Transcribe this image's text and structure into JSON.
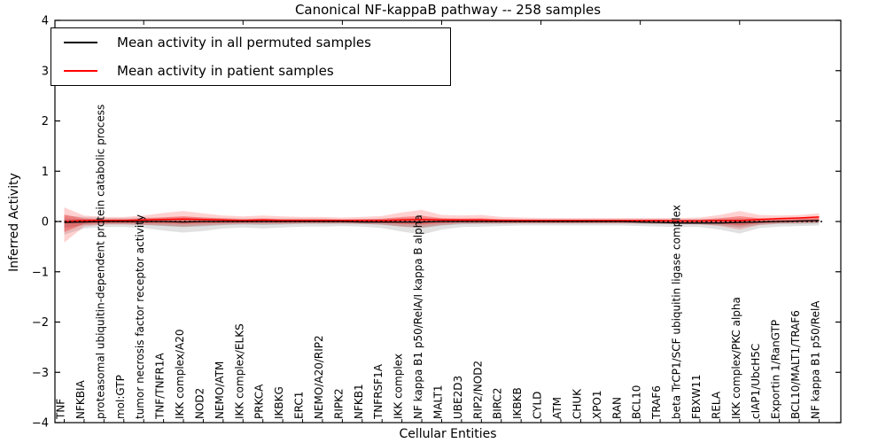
{
  "title": "Canonical NF-kappaB pathway -- 258 samples",
  "axes": {
    "ylabel": "Inferred Activity",
    "xlabel": "Cellular Entities"
  },
  "legend": {
    "items": [
      {
        "label": "Mean activity in all permuted samples",
        "color": "#000000"
      },
      {
        "label": "Mean activity in patient samples",
        "color": "#ff0000"
      }
    ]
  },
  "colors": {
    "permuted_line": "#000000",
    "patient_line": "#ff0000",
    "zero_line": "#000000",
    "permuted_band": "rgba(120,120,120,0.22)",
    "permuted_band_inner": "rgba(120,120,120,0.30)",
    "patient_band": "rgba(255,0,0,0.18)",
    "patient_band_inner": "rgba(255,0,0,0.30)",
    "frame": "#000000"
  },
  "chart_data": {
    "type": "line",
    "title": "Canonical NF-kappaB pathway -- 258 samples",
    "xlabel": "Cellular Entities",
    "ylabel": "Inferred Activity",
    "ylim": [
      -4,
      4
    ],
    "yticks": [
      -4,
      -3,
      -2,
      -1,
      0,
      1,
      2,
      3,
      4
    ],
    "yticklabels": [
      "−4",
      "−3",
      "−2",
      "−1",
      "0",
      "1",
      "2",
      "3",
      "4"
    ],
    "grid": false,
    "legend_position": "upper left",
    "top_tick_indices": [
      4,
      9,
      14,
      19,
      24,
      29,
      34
    ],
    "band_inner_scale": 0.5,
    "categories": [
      "TNF",
      "NFKBIA",
      "proteasomal ubiquitin-dependent protein catabolic process",
      "mol:GTP",
      "tumor necrosis factor receptor activity",
      "TNF/TNFR1A",
      "IKK complex/A20",
      "NOD2",
      "NEMO/ATM",
      "IKK complex/ELKS",
      "PRKCA",
      "IKBKG",
      "ERC1",
      "NEMO/A20/RIP2",
      "RIPK2",
      "NFKB1",
      "TNFRSF1A",
      "IKK complex",
      "NF kappa B1 p50/RelA/I kappa B alpha",
      "MALT1",
      "UBE2D3",
      "RIP2/NOD2",
      "BIRC2",
      "IKBKB",
      "CYLD",
      "ATM",
      "CHUK",
      "XPO1",
      "RAN",
      "BCL10",
      "TRAF6",
      "beta TrCP1/SCF ubiquitin ligase complex",
      "FBXW11",
      "RELA",
      "IKK complex/PKC alpha",
      "cIAP1/UbcH5C",
      "Exportin 1/RanGTP",
      "BCL10/MALT1/TRAF6",
      "NF kappa B1 p50/RelA"
    ],
    "series": [
      {
        "name": "Mean activity in all permuted samples",
        "values": [
          -0.02,
          -0.01,
          0.0,
          0.0,
          0.0,
          0.0,
          -0.01,
          0.0,
          0.0,
          0.0,
          0.0,
          0.0,
          0.0,
          0.0,
          0.0,
          -0.01,
          -0.01,
          -0.01,
          -0.01,
          0.0,
          0.0,
          0.0,
          0.0,
          0.0,
          0.0,
          0.0,
          0.0,
          0.0,
          0.0,
          -0.01,
          -0.02,
          -0.03,
          -0.03,
          -0.03,
          -0.02,
          -0.01,
          0.0,
          0.01,
          0.02
        ],
        "band_upper": [
          0.12,
          0.09,
          0.07,
          0.07,
          0.08,
          0.08,
          0.09,
          0.08,
          0.07,
          0.06,
          0.06,
          0.06,
          0.06,
          0.06,
          0.05,
          0.05,
          0.06,
          0.07,
          0.08,
          0.06,
          0.05,
          0.05,
          0.05,
          0.05,
          0.05,
          0.05,
          0.05,
          0.05,
          0.05,
          0.05,
          0.05,
          0.05,
          0.05,
          0.06,
          0.07,
          0.06,
          0.06,
          0.06,
          0.07
        ],
        "band_lower": [
          -0.26,
          -0.14,
          -0.11,
          -0.11,
          -0.13,
          -0.18,
          -0.22,
          -0.19,
          -0.14,
          -0.12,
          -0.14,
          -0.12,
          -0.1,
          -0.1,
          -0.09,
          -0.1,
          -0.13,
          -0.2,
          -0.26,
          -0.16,
          -0.11,
          -0.1,
          -0.09,
          -0.08,
          -0.08,
          -0.08,
          -0.08,
          -0.08,
          -0.08,
          -0.09,
          -0.1,
          -0.11,
          -0.11,
          -0.16,
          -0.24,
          -0.13,
          -0.1,
          -0.09,
          -0.08
        ]
      },
      {
        "name": "Mean activity in patient samples",
        "values": [
          0.0,
          0.02,
          0.02,
          0.02,
          0.03,
          0.04,
          0.05,
          0.04,
          0.03,
          0.02,
          0.03,
          0.02,
          0.02,
          0.02,
          0.02,
          0.02,
          0.02,
          0.03,
          0.04,
          0.03,
          0.03,
          0.03,
          0.02,
          0.02,
          0.02,
          0.02,
          0.02,
          0.02,
          0.02,
          0.02,
          0.02,
          0.01,
          0.01,
          0.02,
          0.02,
          0.04,
          0.06,
          0.07,
          0.09
        ],
        "band_upper": [
          0.28,
          0.12,
          0.09,
          0.09,
          0.12,
          0.17,
          0.21,
          0.16,
          0.12,
          0.1,
          0.12,
          0.1,
          0.09,
          0.09,
          0.08,
          0.09,
          0.11,
          0.18,
          0.23,
          0.13,
          0.12,
          0.13,
          0.09,
          0.08,
          0.07,
          0.07,
          0.07,
          0.07,
          0.07,
          0.07,
          0.07,
          0.07,
          0.08,
          0.13,
          0.21,
          0.13,
          0.12,
          0.13,
          0.16
        ],
        "band_lower": [
          -0.42,
          -0.1,
          -0.06,
          -0.06,
          -0.07,
          -0.08,
          -0.1,
          -0.08,
          -0.06,
          -0.05,
          -0.05,
          -0.05,
          -0.04,
          -0.04,
          -0.04,
          -0.05,
          -0.06,
          -0.1,
          -0.12,
          -0.07,
          -0.04,
          -0.04,
          -0.04,
          -0.04,
          -0.04,
          -0.04,
          -0.04,
          -0.04,
          -0.04,
          -0.04,
          -0.05,
          -0.05,
          -0.06,
          -0.09,
          -0.16,
          -0.07,
          -0.04,
          -0.03,
          -0.02
        ]
      }
    ]
  }
}
